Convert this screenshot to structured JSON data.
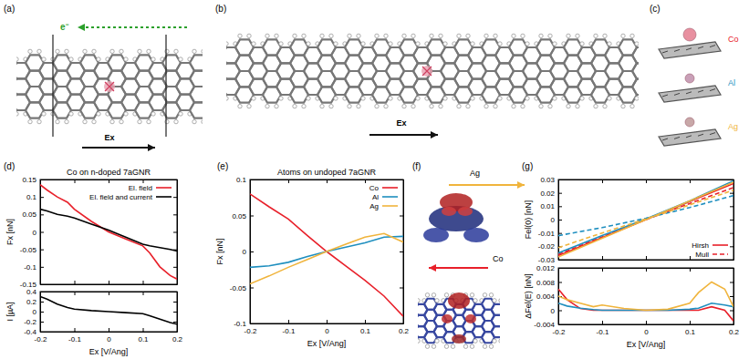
{
  "figure": {
    "a": {
      "label": "(a)",
      "electron": "e⁻",
      "field": "Ex"
    },
    "b": {
      "label": "(b)",
      "field": "Ex"
    },
    "c": {
      "label": "(c)",
      "atoms": [
        {
          "name": "Co",
          "color": "#e8202a"
        },
        {
          "name": "Al",
          "color": "#1f8fbf"
        },
        {
          "name": "Ag",
          "color": "#f0b43c"
        }
      ]
    },
    "d": {
      "label": "(d)"
    },
    "e": {
      "label": "(e)"
    },
    "f": {
      "label": "(f)",
      "atoms": [
        "Ag",
        "Co"
      ]
    },
    "g": {
      "label": "(g)"
    }
  },
  "chart_data": [
    {
      "type": "line",
      "title": "Co on n-doped 7aGNR",
      "y_label": "Fx [nN]",
      "x": [
        -0.2,
        -0.18,
        -0.15,
        -0.12,
        -0.1,
        -0.05,
        0,
        0.05,
        0.1,
        0.12,
        0.15,
        0.18,
        0.2
      ],
      "series": [
        {
          "name": "El. field",
          "color": "#e8202a",
          "line_style": "solid",
          "values": [
            0.135,
            0.12,
            0.1,
            0.085,
            0.065,
            0.03,
            0,
            -0.02,
            -0.04,
            -0.06,
            -0.1,
            -0.125,
            -0.135
          ]
        },
        {
          "name": "El. field and current",
          "color": "#000000",
          "line_style": "solid",
          "values": [
            0.065,
            0.06,
            0.05,
            0.045,
            0.04,
            0.022,
            0.005,
            -0.015,
            -0.035,
            -0.04,
            -0.045,
            -0.05,
            -0.055
          ]
        }
      ],
      "xlim": [
        -0.2,
        0.2
      ],
      "xticks": [
        -0.2,
        -0.1,
        0,
        0.1,
        0.2
      ],
      "ylim": [
        -0.15,
        0.15
      ],
      "yticks": [
        -0.15,
        -0.1,
        -0.05,
        0,
        0.05,
        0.1,
        0.15
      ],
      "tick_labels": "y",
      "legend": "top-right"
    },
    {
      "type": "line",
      "x_label": "Ex [V/Ang]",
      "y_label": "I [µA]",
      "x": [
        -0.2,
        -0.18,
        -0.15,
        -0.12,
        -0.1,
        -0.05,
        0,
        0.05,
        0.1,
        0.12,
        0.15,
        0.18,
        0.2
      ],
      "series": [
        {
          "color": "#000000",
          "line_style": "solid",
          "values": [
            0.3,
            0.25,
            0.15,
            0.08,
            0.05,
            0.02,
            0,
            -0.02,
            -0.04,
            -0.08,
            -0.15,
            -0.22,
            -0.25
          ]
        }
      ],
      "xlim": [
        -0.2,
        0.2
      ],
      "xticks": [
        -0.2,
        -0.1,
        0,
        0.1,
        0.2
      ],
      "ylim": [
        -0.4,
        0.4
      ],
      "yticks": [
        -0.4,
        -0.2,
        0,
        0.2,
        0.4
      ]
    },
    {
      "type": "line",
      "title": "Atoms on undoped 7aGNR",
      "x_label": "Ex [V/Ang]",
      "y_label": "Fx [nN]",
      "x": [
        -0.2,
        -0.15,
        -0.1,
        -0.05,
        0,
        0.05,
        0.1,
        0.15,
        0.2
      ],
      "series": [
        {
          "name": "Co",
          "color": "#e8202a",
          "line_style": "solid",
          "values": [
            0.08,
            0.062,
            0.045,
            0.022,
            0,
            -0.02,
            -0.04,
            -0.062,
            -0.09
          ]
        },
        {
          "name": "Al",
          "color": "#1f8fbf",
          "line_style": "solid",
          "values": [
            -0.022,
            -0.02,
            -0.015,
            -0.007,
            0,
            0.006,
            0.012,
            0.02,
            0.021
          ]
        },
        {
          "name": "Ag",
          "color": "#f0b43c",
          "line_style": "solid",
          "values": [
            -0.045,
            -0.034,
            -0.022,
            -0.011,
            0,
            0.01,
            0.02,
            0.025,
            0.013
          ]
        }
      ],
      "xlim": [
        -0.2,
        0.2
      ],
      "xticks": [
        -0.2,
        -0.1,
        0,
        0.1,
        0.2
      ],
      "ylim": [
        -0.1,
        0.1
      ],
      "yticks": [
        -0.1,
        -0.05,
        0,
        0.05,
        0.1
      ],
      "legend": "top-right"
    },
    {
      "type": "line",
      "y_label": "Fel(0) [nN]",
      "x": [
        -0.2,
        -0.1,
        0,
        0.1,
        0.2
      ],
      "series": [
        {
          "name": "Hirsh",
          "color": "#e8202a",
          "line_style": "solid",
          "values": [
            -0.027,
            -0.0135,
            0,
            0.0135,
            0.027
          ]
        },
        {
          "name": "Mull",
          "color": "#e8202a",
          "line_style": "dashed",
          "values": [
            -0.026,
            -0.013,
            0,
            0.012,
            0.024
          ]
        },
        {
          "color": "#1f8fbf",
          "line_style": "solid",
          "values": [
            -0.025,
            -0.012,
            0.0005,
            0.014,
            0.029
          ]
        },
        {
          "color": "#1f8fbf",
          "line_style": "dashed",
          "values": [
            -0.012,
            -0.006,
            0.001,
            0.009,
            0.018
          ]
        },
        {
          "color": "#f0b43c",
          "line_style": "solid",
          "values": [
            -0.028,
            -0.014,
            0,
            0.014,
            0.028
          ]
        },
        {
          "color": "#f0b43c",
          "line_style": "dashed",
          "values": [
            -0.021,
            -0.01,
            0.0005,
            0.011,
            0.022
          ]
        }
      ],
      "xlim": [
        -0.2,
        0.2
      ],
      "xticks": [
        -0.2,
        -0.1,
        0,
        0.1,
        0.2
      ],
      "ylim": [
        -0.03,
        0.03
      ],
      "yticks": [
        -0.03,
        -0.02,
        -0.01,
        0,
        0.01,
        0.02,
        0.03
      ],
      "tick_labels": "y",
      "legend": "bottom-right"
    },
    {
      "type": "line",
      "x_label": "Ex [V/Ang]",
      "y_label": "ΔFel(E) [nN]",
      "x": [
        -0.2,
        -0.18,
        -0.15,
        -0.12,
        -0.1,
        -0.05,
        0,
        0.05,
        0.1,
        0.12,
        0.15,
        0.18,
        0.2
      ],
      "series": [
        {
          "color": "#e8202a",
          "line_style": "solid",
          "values": [
            0.006,
            0.003,
            0.0005,
            0,
            0,
            0,
            0,
            0,
            0,
            0,
            0.001,
            0,
            -0.003
          ]
        },
        {
          "color": "#1f8fbf",
          "line_style": "solid",
          "values": [
            0.002,
            0.0012,
            0.0006,
            0.0002,
            0,
            0,
            0,
            0,
            0.0003,
            0.0006,
            0.002,
            0.0015,
            0.001
          ]
        },
        {
          "color": "#f0b43c",
          "line_style": "solid",
          "values": [
            0.004,
            0.003,
            0.002,
            0.001,
            0.0015,
            0.0005,
            0,
            0.0003,
            0.002,
            0.005,
            0.008,
            0.006,
            0.001
          ]
        }
      ],
      "xlim": [
        -0.2,
        0.2
      ],
      "xticks": [
        -0.2,
        -0.1,
        0,
        0.1,
        0.2
      ],
      "ylim": [
        -0.004,
        0.012
      ],
      "yticks": [
        -0.004,
        0,
        0.004,
        0.008,
        0.012
      ]
    }
  ]
}
